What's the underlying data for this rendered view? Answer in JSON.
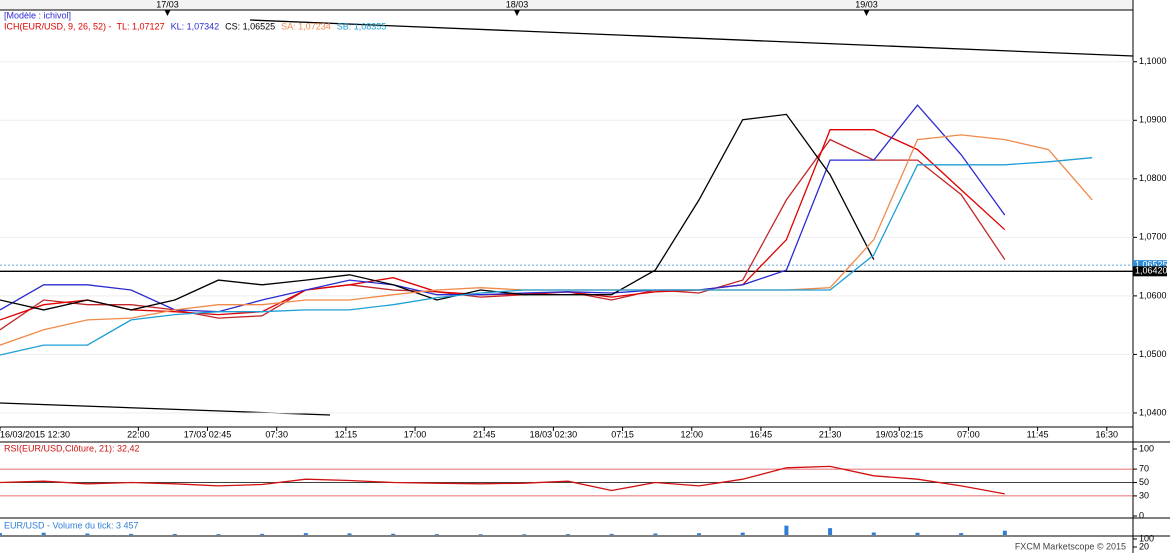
{
  "chart_data": [
    {
      "type": "line",
      "model_label": "[Modèle : ichivol]",
      "indicator_label": "ICH(EUR/USD, 9, 26, 52) -",
      "top_markers": [
        {
          "value": 11.5,
          "label": "17/03"
        },
        {
          "value": 35.5,
          "label": "18/03"
        },
        {
          "value": 59.5,
          "label": "19/03"
        }
      ],
      "x": [
        0,
        3,
        6,
        9,
        12,
        15,
        18,
        21,
        24,
        27,
        30,
        33,
        36,
        39,
        42,
        45,
        48,
        51,
        54,
        57,
        60,
        63,
        66,
        69,
        72,
        75
      ],
      "xlim": [
        0,
        77.8
      ],
      "xticks": [
        {
          "value": 0,
          "label": "16/03/2015 12:30"
        },
        {
          "value": 9.5,
          "label": "22:00"
        },
        {
          "value": 14.25,
          "label": "17/03 02:45"
        },
        {
          "value": 19,
          "label": "07:30"
        },
        {
          "value": 23.75,
          "label": "12:15"
        },
        {
          "value": 28.5,
          "label": "17:00"
        },
        {
          "value": 33.25,
          "label": "21:45"
        },
        {
          "value": 38,
          "label": "18/03 02:30"
        },
        {
          "value": 42.75,
          "label": "07:15"
        },
        {
          "value": 47.5,
          "label": "12:00"
        },
        {
          "value": 52.25,
          "label": "16:45"
        },
        {
          "value": 57,
          "label": "21:30"
        },
        {
          "value": 61.75,
          "label": "19/03 02:15"
        },
        {
          "value": 66.5,
          "label": "07:00"
        },
        {
          "value": 71.25,
          "label": "11:45"
        },
        {
          "value": 76,
          "label": "16:30"
        }
      ],
      "ylim": [
        1.0376,
        1.1085
      ],
      "yticks": [
        {
          "value": 1.04,
          "label": "1,0400"
        },
        {
          "value": 1.05,
          "label": "1,0500"
        },
        {
          "value": 1.06,
          "label": "1,0600"
        },
        {
          "value": 1.07,
          "label": "1,0700"
        },
        {
          "value": 1.08,
          "label": "1,0800"
        },
        {
          "value": 1.09,
          "label": "1,0900"
        },
        {
          "value": 1.1,
          "label": "1,1000"
        }
      ],
      "price_markers": [
        {
          "value": 1.06525,
          "label": "1,06525",
          "color": "#2e8bd8"
        },
        {
          "value": 1.0642,
          "label": "1,06420",
          "color": "#000000"
        }
      ],
      "series": [
        {
          "name": "Clôture",
          "color": "#c0282b",
          "values": [
            1.0542,
            1.0593,
            1.0585,
            1.0585,
            1.0576,
            1.0562,
            1.0566,
            1.061,
            1.0619,
            1.061,
            1.0607,
            1.0598,
            1.0602,
            1.0607,
            1.0593,
            1.061,
            1.0605,
            1.0627,
            1.0764,
            1.0867,
            1.0832,
            1.0832,
            1.0773,
            1.0662,
            null,
            null
          ]
        },
        {
          "name": "TL",
          "legend": "TL: 1,07127",
          "color": "#e00000",
          "values": [
            1.0559,
            1.0585,
            1.0593,
            1.0576,
            1.0573,
            1.0568,
            1.0573,
            1.061,
            1.0619,
            1.0631,
            1.0607,
            1.0602,
            1.0603,
            1.0607,
            1.0598,
            1.0607,
            1.061,
            1.0619,
            1.0696,
            1.0884,
            1.0884,
            1.085,
            1.0781,
            1.0713,
            null,
            null
          ]
        },
        {
          "name": "KL",
          "legend": "KL: 1,07342",
          "color": "#2b2bd0",
          "values": [
            1.0576,
            1.0619,
            1.0619,
            1.061,
            1.0576,
            1.0573,
            1.0593,
            1.061,
            1.0627,
            1.0619,
            1.0602,
            1.0602,
            1.0605,
            1.0607,
            1.0605,
            1.061,
            1.061,
            1.0619,
            1.0644,
            1.0832,
            1.0832,
            1.0926,
            1.0841,
            1.0738,
            null,
            null
          ]
        },
        {
          "name": "CS",
          "legend": "CS: 1,06525",
          "color": "#000000",
          "values": [
            1.0593,
            1.0576,
            1.0593,
            1.0576,
            1.0593,
            1.0627,
            1.0619,
            1.0627,
            1.0636,
            1.0619,
            1.0593,
            1.061,
            1.0602,
            1.0602,
            1.0602,
            1.0644,
            1.0764,
            1.0901,
            1.091,
            1.0807,
            1.0662,
            null,
            null,
            null,
            null,
            null
          ]
        },
        {
          "name": "SA",
          "legend": "SA: 1,07234",
          "color": "#f08a4b",
          "values": [
            1.0516,
            1.0542,
            1.0559,
            1.0562,
            1.0576,
            1.0585,
            1.0585,
            1.0593,
            1.0593,
            1.0602,
            1.061,
            1.0614,
            1.061,
            1.061,
            1.061,
            1.061,
            1.061,
            1.061,
            1.061,
            1.0614,
            1.0696,
            1.0867,
            1.0875,
            1.0867,
            1.085,
            1.0764
          ]
        },
        {
          "name": "SB",
          "legend": "SB: 1,08355",
          "color": "#1e9fd6",
          "values": [
            1.0499,
            1.0516,
            1.0516,
            1.0559,
            1.0568,
            1.0573,
            1.0573,
            1.0576,
            1.0576,
            1.0585,
            1.0597,
            1.0605,
            1.061,
            1.061,
            1.061,
            1.061,
            1.061,
            1.061,
            1.061,
            1.061,
            1.067,
            1.0824,
            1.0824,
            1.0824,
            1.0829,
            1.0836
          ]
        }
      ]
    },
    {
      "type": "line",
      "title": "RSI(EUR/USD,Clôture, 21): 32,42",
      "x": [
        0,
        3,
        6,
        9,
        12,
        15,
        18,
        21,
        24,
        27,
        30,
        33,
        36,
        39,
        42,
        45,
        48,
        51,
        54,
        57,
        60,
        63,
        66,
        69
      ],
      "xlim": [
        0,
        77.8
      ],
      "ylim": [
        0,
        106
      ],
      "yticks": [
        0,
        30,
        50,
        70,
        100
      ],
      "levels": [
        {
          "value": 70,
          "color": "#e04040"
        },
        {
          "value": 50,
          "color": "#000000"
        },
        {
          "value": 30,
          "color": "#e04040"
        }
      ],
      "series": [
        {
          "name": "RSI",
          "color": "#d01010",
          "values": [
            50,
            52,
            48,
            50,
            48,
            45,
            47,
            55,
            53,
            50,
            49,
            48,
            49,
            52,
            38,
            50,
            45,
            55,
            72,
            74,
            60,
            55,
            45,
            33
          ]
        }
      ]
    },
    {
      "type": "bar",
      "title": "EUR/USD - Volume du tick: 3 457",
      "x": [
        0,
        3,
        6,
        9,
        12,
        15,
        18,
        21,
        24,
        27,
        30,
        33,
        36,
        39,
        42,
        45,
        48,
        51,
        54,
        57,
        60,
        63,
        66,
        69
      ],
      "xlim": [
        0,
        77.8
      ],
      "ylim": [
        0,
        12000
      ],
      "color": "#2e7fd8",
      "values": [
        1500,
        1800,
        1200,
        900,
        800,
        700,
        900,
        1500,
        1300,
        1000,
        700,
        600,
        600,
        700,
        900,
        1200,
        1400,
        1900,
        7500,
        5500,
        2000,
        1800,
        1500,
        3457
      ]
    },
    {
      "type": "line",
      "title": "FXCM Marketscope © 2015",
      "ylim": [
        0,
        110
      ],
      "yticks": [
        20,
        100
      ],
      "series": []
    }
  ]
}
